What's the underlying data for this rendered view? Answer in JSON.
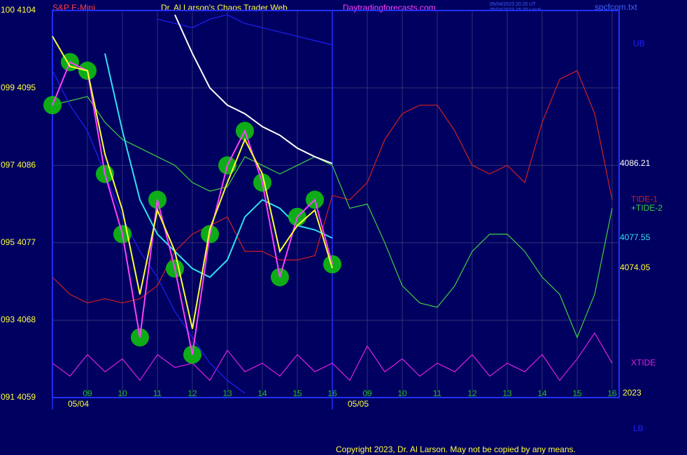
{
  "chart_data": {
    "type": "line",
    "title": "Dr. Al Larson's Chaos Trader Web",
    "symbol": "S&P E-Mini",
    "site": "Daytradingforecasts.com",
    "timestamps": [
      "05/04/2023 20:20 UT",
      "05/04/2023 15:20 Local"
    ],
    "file": "spcfcom.txt",
    "year": "2023",
    "copyright": "Copyright 2023, Dr. Al Larson. May not be copied by any means.",
    "background": "#000060",
    "grid": true,
    "xlim": [
      -1,
      15.2
    ],
    "ylim": [
      4059,
      4104
    ],
    "yticks": [
      {
        "value": 4104,
        "label": "100 4104"
      },
      {
        "value": 4095,
        "label": "099 4095"
      },
      {
        "value": 4086,
        "label": "097 4086"
      },
      {
        "value": 4077,
        "label": "095 4077"
      },
      {
        "value": 4068,
        "label": "093 4068"
      },
      {
        "value": 4059,
        "label": "091 4059"
      }
    ],
    "xticks": [
      {
        "value": 0,
        "label": "09"
      },
      {
        "value": 1,
        "label": "10"
      },
      {
        "value": 2,
        "label": "11"
      },
      {
        "value": 3,
        "label": "12"
      },
      {
        "value": 4,
        "label": "13"
      },
      {
        "value": 5,
        "label": "14"
      },
      {
        "value": 6,
        "label": "15"
      },
      {
        "value": 7,
        "label": "16"
      },
      {
        "value": 8,
        "label": "09"
      },
      {
        "value": 9,
        "label": "10"
      },
      {
        "value": 10,
        "label": "11"
      },
      {
        "value": 11,
        "label": "12"
      },
      {
        "value": 12,
        "label": "13"
      },
      {
        "value": 13,
        "label": "14"
      },
      {
        "value": 14,
        "label": "15"
      },
      {
        "value": 15,
        "label": "16"
      }
    ],
    "date_ticks": [
      {
        "value": -1,
        "label": "05/04"
      },
      {
        "value": 7,
        "label": "05/05"
      }
    ],
    "x": [
      -1,
      -0.5,
      0,
      0.5,
      1,
      1.5,
      2,
      2.5,
      3,
      3.5,
      4,
      4.5,
      5,
      5.5,
      6,
      6.5,
      7,
      7.5,
      8,
      8.5,
      9,
      9.5,
      10,
      10.5,
      11,
      11.5,
      12,
      12.5,
      13,
      13.5,
      14,
      14.5,
      15
    ],
    "series": [
      {
        "name": "TIDE-1",
        "color": "#d02020",
        "values": [
          4073,
          4071,
          4070,
          4070.5,
          4070,
          4070.5,
          4072,
          4076,
          4078,
          4079,
          4080,
          4076,
          4076,
          4075,
          4075,
          4075.5,
          4082.5,
          4082,
          4084,
          4089,
          4092,
          4093,
          4093,
          4090,
          4086,
          4085,
          4086,
          4084,
          4091,
          4096,
          4097,
          4092,
          4082
        ]
      },
      {
        "name": "+TIDE-2",
        "color": "#40d040",
        "values": [
          4093,
          4093.5,
          4094,
          4091,
          4089,
          4088,
          4087,
          4086,
          4084,
          4083,
          4083.5,
          4087,
          4086,
          4085,
          4086,
          4087,
          4086,
          4081,
          4081.5,
          4077,
          4072,
          4070,
          4069.5,
          4072,
          4076,
          4078,
          4078,
          4076,
          4073,
          4071,
          4066,
          4071,
          4081
        ]
      },
      {
        "name": "XTIDE",
        "color": "#e020e0",
        "values": [
          4063,
          4061.5,
          4064,
          4062,
          4063.5,
          4061,
          4064,
          4062.5,
          4063,
          4061,
          4064.5,
          4062,
          4063,
          4061.5,
          4064,
          4062,
          4063,
          4061,
          4065,
          4062,
          4063.5,
          4061.5,
          4063,
          4062,
          4064,
          4061.5,
          4063,
          4062,
          4064,
          4061,
          4063.5,
          4066.5,
          4063
        ]
      },
      {
        "name": "UB",
        "color": "#2020ff",
        "values": [
          null,
          null,
          null,
          null,
          null,
          null,
          4103,
          4102.5,
          4102,
          4103,
          4103.5,
          4102.5,
          4102,
          4101.5,
          4101,
          4100.5,
          4100,
          null,
          null,
          null,
          null,
          null,
          null,
          null,
          null,
          null,
          null,
          null,
          null,
          null,
          null,
          null,
          null
        ]
      },
      {
        "name": "LB",
        "color": "#2020ff",
        "values": [
          4097,
          4093,
          4090,
          4085,
          4080,
          4076,
          4073,
          4069,
          4066,
          4063,
          4061,
          4059.5,
          null,
          null,
          null,
          null,
          null,
          null,
          null,
          null,
          null,
          null,
          null,
          null,
          null,
          null,
          null,
          null,
          null,
          null,
          null,
          null,
          null
        ]
      },
      {
        "color": "#ffffff",
        "end_label": true,
        "values": [
          null,
          null,
          null,
          null,
          null,
          null,
          null,
          4103.5,
          4099,
          4095,
          4093,
          4092,
          4090.5,
          4089.5,
          4088,
          4087,
          4086.21,
          null,
          null,
          null,
          null,
          null,
          null,
          null,
          null,
          null,
          null,
          null,
          null,
          null,
          null,
          null,
          null
        ]
      },
      {
        "color": "#30e0f0",
        "end_label": true,
        "values": [
          null,
          null,
          null,
          4099,
          4090,
          4082,
          4078,
          4076,
          4074,
          4073,
          4075,
          4080,
          4082,
          4081,
          4079,
          4078.5,
          4077.55,
          null,
          null,
          null,
          null,
          null,
          null,
          null,
          null,
          null,
          null,
          null,
          null,
          null,
          null,
          null,
          null
        ]
      },
      {
        "color": "#ff40ff",
        "marker_color": "#10c010",
        "values": [
          4093,
          4098,
          4097,
          4085,
          4078,
          4066,
          4082,
          4074,
          4064,
          4078,
          4086,
          4090,
          4084,
          4073,
          4080,
          4082,
          4074.5,
          null,
          null,
          null,
          null,
          null,
          null,
          null,
          null,
          null,
          null,
          null,
          null,
          null,
          null,
          null,
          null
        ]
      },
      {
        "color": "#ffff30",
        "end_label": true,
        "values": [
          4101,
          4097.5,
          4097,
          4087.3,
          4080.8,
          4071,
          4080.8,
          4076,
          4067,
          4078.6,
          4084,
          4089,
          4085,
          4076,
          4079,
          4080.8,
          4074.05,
          null,
          null,
          null,
          null,
          null,
          null,
          null,
          null,
          null,
          null,
          null,
          null,
          null,
          null,
          null,
          null
        ]
      }
    ]
  }
}
